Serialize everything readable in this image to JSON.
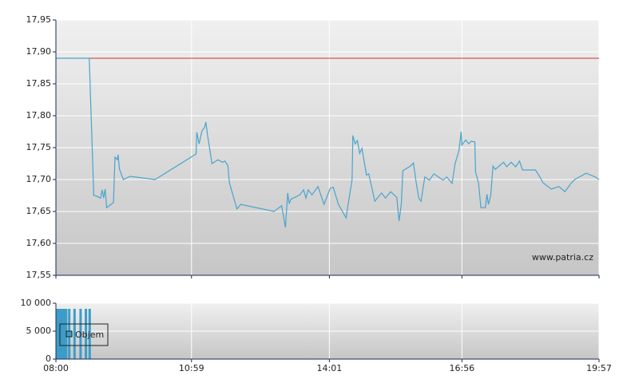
{
  "chart_data": [
    {
      "type": "line",
      "xlim": [
        "08:00",
        "19:57"
      ],
      "xticks": [
        "08:00",
        "10:59",
        "14:01",
        "16:56",
        "19:57"
      ],
      "ylim": [
        17.55,
        17.95
      ],
      "yticks": [
        {
          "value": 17.55,
          "label": "17,55"
        },
        {
          "value": 17.6,
          "label": "17,60"
        },
        {
          "value": 17.65,
          "label": "17,65"
        },
        {
          "value": 17.7,
          "label": "17,70"
        },
        {
          "value": 17.75,
          "label": "17,75"
        },
        {
          "value": 17.8,
          "label": "17,80"
        },
        {
          "value": 17.85,
          "label": "17,85"
        },
        {
          "value": 17.9,
          "label": "17,90"
        },
        {
          "value": 17.95,
          "label": "17,95"
        }
      ],
      "grid": true,
      "reference_line": {
        "value": 17.89,
        "color": "#cc3333"
      },
      "annotation": "www.patria.cz",
      "x": [
        "08:00",
        "08:44",
        "08:50",
        "08:54",
        "08:59",
        "09:01",
        "09:03",
        "09:05",
        "09:07",
        "09:16",
        "09:18",
        "09:21",
        "09:22",
        "09:24",
        "09:29",
        "09:38",
        "10:11",
        "11:05",
        "11:06",
        "11:09",
        "11:13",
        "11:16",
        "11:18",
        "11:20",
        "11:26",
        "11:34",
        "11:40",
        "11:43",
        "11:47",
        "11:49",
        "11:59",
        "12:04",
        "12:48",
        "12:58",
        "13:03",
        "13:06",
        "13:08",
        "13:10",
        "13:22",
        "13:27",
        "13:30",
        "13:33",
        "13:38",
        "13:46",
        "13:54",
        "14:02",
        "14:06",
        "14:13",
        "14:23",
        "14:31",
        "14:32",
        "14:35",
        "14:38",
        "14:41",
        "14:44",
        "14:50",
        "14:53",
        "15:01",
        "15:10",
        "15:15",
        "15:22",
        "15:30",
        "15:33",
        "15:36",
        "15:38",
        "15:48",
        "15:52",
        "15:55",
        "15:59",
        "16:02",
        "16:07",
        "16:13",
        "16:19",
        "16:31",
        "16:36",
        "16:43",
        "16:47",
        "16:52",
        "16:55",
        "16:56",
        "17:01",
        "17:05",
        "17:08",
        "17:13",
        "17:14",
        "17:18",
        "17:21",
        "17:27",
        "17:29",
        "17:31",
        "17:34",
        "17:37",
        "17:40",
        "17:51",
        "17:55",
        "18:01",
        "18:07",
        "18:12",
        "18:16",
        "18:23",
        "18:33",
        "18:38",
        "18:43",
        "18:54",
        "19:04",
        "19:12",
        "19:20",
        "19:25",
        "19:40",
        "19:52",
        "19:57"
      ],
      "series": [
        {
          "color": "#4aa3cc",
          "values": [
            17.89,
            17.89,
            17.675,
            17.674,
            17.671,
            17.684,
            17.671,
            17.685,
            17.656,
            17.664,
            17.735,
            17.731,
            17.739,
            17.716,
            17.7,
            17.705,
            17.7,
            17.74,
            17.774,
            17.756,
            17.777,
            17.781,
            17.79,
            17.771,
            17.725,
            17.731,
            17.727,
            17.729,
            17.722,
            17.695,
            17.654,
            17.661,
            17.65,
            17.659,
            17.625,
            17.679,
            17.662,
            17.669,
            17.676,
            17.684,
            17.671,
            17.684,
            17.676,
            17.689,
            17.661,
            17.686,
            17.688,
            17.661,
            17.64,
            17.7,
            17.769,
            17.756,
            17.761,
            17.741,
            17.749,
            17.707,
            17.709,
            17.666,
            17.679,
            17.671,
            17.681,
            17.672,
            17.635,
            17.662,
            17.714,
            17.721,
            17.726,
            17.7,
            17.671,
            17.666,
            17.704,
            17.699,
            17.709,
            17.699,
            17.704,
            17.694,
            17.725,
            17.745,
            17.775,
            17.754,
            17.762,
            17.756,
            17.76,
            17.759,
            17.712,
            17.694,
            17.656,
            17.656,
            17.677,
            17.661,
            17.675,
            17.721,
            17.716,
            17.727,
            17.72,
            17.727,
            17.72,
            17.729,
            17.715,
            17.715,
            17.715,
            17.706,
            17.695,
            17.685,
            17.689,
            17.681,
            17.694,
            17.7,
            17.71,
            17.704,
            17.7
          ]
        }
      ]
    },
    {
      "type": "bar",
      "xlim": [
        "08:00",
        "19:57"
      ],
      "xticks": [
        "08:00",
        "10:59",
        "14:01",
        "16:56",
        "19:57"
      ],
      "ylim": [
        0,
        10000
      ],
      "yticks": [
        0,
        {
          "value": 5000,
          "label": "5 000"
        },
        {
          "value": 10000,
          "label": "10 000"
        }
      ],
      "grid": true,
      "x": [
        "08:00",
        "08:01",
        "08:02",
        "08:03",
        "08:04",
        "08:05",
        "08:06",
        "08:07",
        "08:08",
        "08:09",
        "08:10",
        "08:11",
        "08:12",
        "08:16",
        "08:23",
        "08:31",
        "08:38",
        "08:43"
      ],
      "series": [
        {
          "name": "Objem",
          "color": "#3d9cc8",
          "values": [
            9000,
            9000,
            9000,
            9000,
            9000,
            9000,
            9000,
            9000,
            9000,
            9000,
            9000,
            9000,
            9000,
            9000,
            9000,
            9000,
            9000,
            9000
          ]
        }
      ]
    }
  ]
}
